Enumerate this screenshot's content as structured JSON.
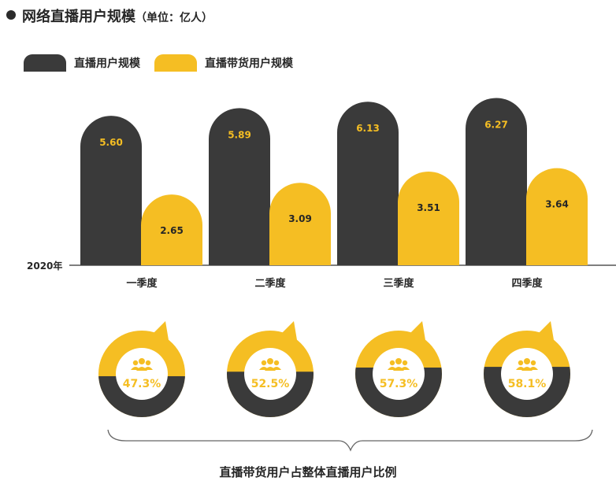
{
  "header": {
    "title": "网络直播用户规模",
    "unit": "（单位：亿人）"
  },
  "colors": {
    "dark": "#3a3a3a",
    "yellow": "#f5be23",
    "text": "#262626",
    "dark_label": "#f5be23",
    "yellow_label": "#262626"
  },
  "chart_data": {
    "type": "bar",
    "year_label": "2020年",
    "categories": [
      "一季度",
      "二季度",
      "三季度",
      "四季度"
    ],
    "series": [
      {
        "name": "直播用户规模",
        "values": [
          5.6,
          5.89,
          6.13,
          6.27
        ],
        "labels": [
          "5.60",
          "5.89",
          "6.13",
          "6.27"
        ]
      },
      {
        "name": "直播带货用户规模",
        "values": [
          2.65,
          3.09,
          3.51,
          3.64
        ],
        "labels": [
          "2.65",
          "3.09",
          "3.51",
          "3.64"
        ]
      }
    ],
    "ylim": [
      0,
      6.5
    ]
  },
  "ratio": {
    "values": [
      47.3,
      52.5,
      57.3,
      58.1
    ],
    "labels": [
      "47.3%",
      "52.5%",
      "57.3%",
      "58.1%"
    ],
    "caption": "直播带货用户占整体直播用户比例"
  },
  "icons": {
    "ratio_icon": "people-group-icon"
  }
}
